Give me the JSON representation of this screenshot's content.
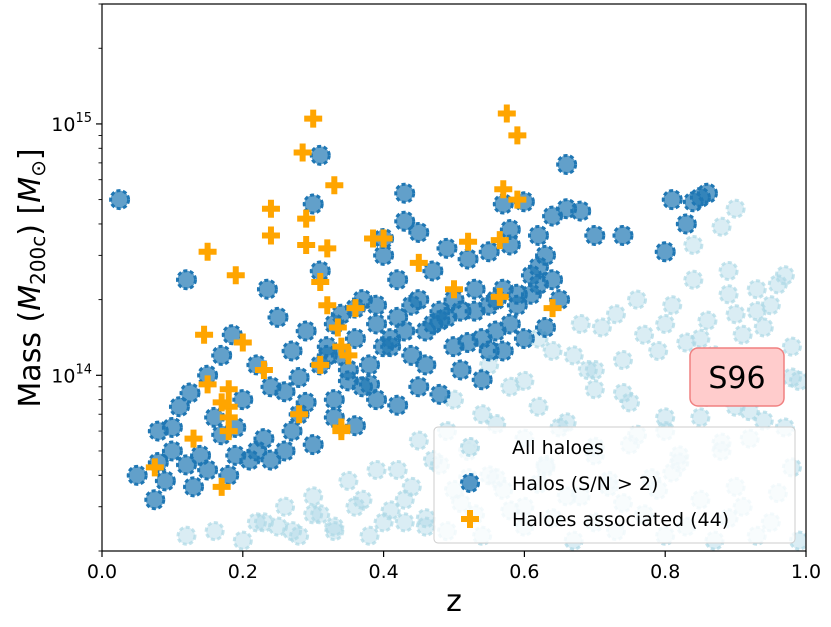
{
  "chart_data": {
    "type": "scatter",
    "xlabel": "z",
    "ylabel": "Mass (M200c) [M⊙]",
    "ylabel_parts": {
      "pre": "Mass (",
      "sym": "M",
      "sub": "200c",
      "mid": ") [",
      "sym2": "M",
      "sub2": "⊙",
      "post": "]"
    },
    "xlim": [
      0.0,
      1.0
    ],
    "ylim": [
      20000000000000.0,
      3000000000000000.0
    ],
    "yscale": "log",
    "x_ticks": [
      {
        "value": 0.0,
        "label": "0.0"
      },
      {
        "value": 0.2,
        "label": "0.2"
      },
      {
        "value": 0.4,
        "label": "0.4"
      },
      {
        "value": 0.6,
        "label": "0.6"
      },
      {
        "value": 0.8,
        "label": "0.8"
      },
      {
        "value": 1.0,
        "label": "1.0"
      }
    ],
    "y_ticks": [
      {
        "value": 100000000000000.0,
        "base": "10",
        "exp": "14"
      },
      {
        "value": 1000000000000000.0,
        "base": "10",
        "exp": "15"
      }
    ],
    "annotation": {
      "text": "S96",
      "x": 0.9,
      "y": 100000000000000.0,
      "facecolor": "#ffcccc",
      "edgecolor": "#f08080"
    },
    "legend": {
      "placement": "lower-right"
    },
    "colors": {
      "all": "#add8e6",
      "detected": "#1f77b4",
      "associated": "#ffa500"
    },
    "series": [
      {
        "name": "All haloes",
        "marker": "circle",
        "color": "#add8e6",
        "x": [
          0.12,
          0.16,
          0.2,
          0.22,
          0.25,
          0.28,
          0.3,
          0.33,
          0.36,
          0.4,
          0.43,
          0.46,
          0.5,
          0.53,
          0.56,
          0.6,
          0.63,
          0.66,
          0.7,
          0.72,
          0.75,
          0.78,
          0.8,
          0.82,
          0.85,
          0.88,
          0.9,
          0.92,
          0.95,
          0.97,
          0.99,
          0.7,
          0.74,
          0.79,
          0.83,
          0.87,
          0.91,
          0.94,
          0.98,
          0.68,
          0.73,
          0.77,
          0.81,
          0.86,
          0.89,
          0.93,
          0.96,
          0.62,
          0.67,
          0.71,
          0.76,
          0.84,
          0.89,
          0.93,
          0.97,
          0.55,
          0.6,
          0.64,
          0.69,
          0.74,
          0.8,
          0.85,
          0.9,
          0.95,
          0.5,
          0.54,
          0.58,
          0.62,
          0.66,
          0.7,
          0.75,
          0.8,
          0.86,
          0.92,
          0.98,
          0.45,
          0.49,
          0.52,
          0.56,
          0.6,
          0.65,
          0.7,
          0.76,
          0.82,
          0.88,
          0.94,
          0.42,
          0.47,
          0.55,
          0.63,
          0.72,
          0.81,
          0.9,
          0.98,
          0.3,
          0.35,
          0.39,
          0.44,
          0.48,
          0.52,
          0.57,
          0.62,
          0.68,
          0.74,
          0.79,
          0.85,
          0.91,
          0.96,
          0.26,
          0.31,
          0.37,
          0.41,
          0.46,
          0.51,
          0.58,
          0.64,
          0.7,
          0.77,
          0.83,
          0.89,
          0.95,
          0.23,
          0.27,
          0.33,
          0.38,
          0.43,
          0.49,
          0.54,
          0.6,
          0.67,
          0.73,
          0.8,
          0.87,
          0.93,
          0.99,
          0.9,
          0.88,
          0.84
        ],
        "y": [
          23000000000000.0,
          24000000000000.0,
          22000000000000.0,
          26000000000000.0,
          25000000000000.0,
          23000000000000.0,
          28000000000000.0,
          24000000000000.0,
          30000000000000.0,
          26000000000000.0,
          32000000000000.0,
          25000000000000.0,
          35000000000000.0,
          28000000000000.0,
          39000000000000.0,
          30000000000000.0,
          43000000000000.0,
          33000000000000.0,
          48000000000000.0,
          36000000000000.0,
          53000000000000.0,
          39000000000000.0,
          60000000000000.0,
          45000000000000.0,
          68000000000000.0,
          50000000000000.0,
          75000000000000.0,
          56000000000000.0,
          85000000000000.0,
          62000000000000.0,
          95000000000000.0,
          105000000000000.0,
          115000000000000.0,
          125000000000000.0,
          135000000000000.0,
          120000000000000.0,
          145000000000000.0,
          155000000000000.0,
          130000000000000.0,
          160000000000000.0,
          175000000000000.0,
          145000000000000.0,
          190000000000000.0,
          165000000000000.0,
          210000000000000.0,
          180000000000000.0,
          230000000000000.0,
          140000000000000.0,
          120000000000000.0,
          155000000000000.0,
          200000000000000.0,
          240000000000000.0,
          260000000000000.0,
          220000000000000.0,
          250000000000000.0,
          110000000000000.0,
          95000000000000.0,
          125000000000000.0,
          105000000000000.0,
          85000000000000.0,
          160000000000000.0,
          140000000000000.0,
          175000000000000.0,
          190000000000000.0,
          80000000000000.0,
          70000000000000.0,
          90000000000000.0,
          75000000000000.0,
          65000000000000.0,
          88000000000000.0,
          78000000000000.0,
          68000000000000.0,
          82000000000000.0,
          72000000000000.0,
          98000000000000.0,
          55000000000000.0,
          60000000000000.0,
          50000000000000.0,
          64000000000000.0,
          56000000000000.0,
          62000000000000.0,
          52000000000000.0,
          58000000000000.0,
          48000000000000.0,
          54000000000000.0,
          66000000000000.0,
          42000000000000.0,
          46000000000000.0,
          40000000000000.0,
          44000000000000.0,
          38000000000000.0,
          41000000000000.0,
          36000000000000.0,
          43000000000000.0,
          33000000000000.0,
          38000000000000.0,
          42000000000000.0,
          36000000000000.0,
          44000000000000.0,
          39000000000000.0,
          35000000000000.0,
          37000000000000.0,
          33000000000000.0,
          31000000000000.0,
          35000000000000.0,
          32000000000000.0,
          30000000000000.0,
          34000000000000.0,
          30000000000000.0,
          28000000000000.0,
          32000000000000.0,
          29000000000000.0,
          27000000000000.0,
          31000000000000.0,
          29000000000000.0,
          27000000000000.0,
          26000000000000.0,
          28000000000000.0,
          25000000000000.0,
          27000000000000.0,
          26000000000000.0,
          26000000000000.0,
          24000000000000.0,
          25000000000000.0,
          23000000000000.0,
          26000000000000.0,
          24000000000000.0,
          23000000000000.0,
          25000000000000.0,
          22000000000000.0,
          24000000000000.0,
          23000000000000.0,
          22000000000000.0,
          23000000000000.0,
          22000000000000.0,
          460000000000000.0,
          390000000000000.0,
          330000000000000.0
        ]
      },
      {
        "name": "Halos (S/N > 2)",
        "marker": "circle",
        "color": "#1f77b4",
        "x": [
          0.025,
          0.05,
          0.075,
          0.08,
          0.09,
          0.1,
          0.11,
          0.12,
          0.125,
          0.13,
          0.14,
          0.15,
          0.16,
          0.17,
          0.18,
          0.185,
          0.19,
          0.2,
          0.21,
          0.22,
          0.23,
          0.235,
          0.24,
          0.25,
          0.26,
          0.27,
          0.28,
          0.29,
          0.3,
          0.31,
          0.32,
          0.33,
          0.34,
          0.35,
          0.36,
          0.37,
          0.38,
          0.39,
          0.4,
          0.41,
          0.42,
          0.43,
          0.44,
          0.45,
          0.46,
          0.47,
          0.48,
          0.49,
          0.5,
          0.51,
          0.52,
          0.53,
          0.54,
          0.55,
          0.56,
          0.57,
          0.58,
          0.59,
          0.6,
          0.61,
          0.62,
          0.63,
          0.64,
          0.65,
          0.66,
          0.68,
          0.7,
          0.74,
          0.8,
          0.81,
          0.83,
          0.84,
          0.85,
          0.86,
          0.08,
          0.1,
          0.12,
          0.15,
          0.17,
          0.19,
          0.22,
          0.24,
          0.27,
          0.3,
          0.33,
          0.36,
          0.39,
          0.42,
          0.45,
          0.48,
          0.51,
          0.54,
          0.57,
          0.6,
          0.63,
          0.28,
          0.31,
          0.34,
          0.37,
          0.4,
          0.43,
          0.46,
          0.49,
          0.52,
          0.55,
          0.58,
          0.61,
          0.26,
          0.29,
          0.32,
          0.35,
          0.38,
          0.41,
          0.44,
          0.47,
          0.5,
          0.53,
          0.56,
          0.59,
          0.62,
          0.33,
          0.36,
          0.39,
          0.42,
          0.45,
          0.48,
          0.55,
          0.57,
          0.58,
          0.62,
          0.64,
          0.66,
          0.43,
          0.4,
          0.31
        ],
        "y": [
          500000000000000.0,
          40000000000000.0,
          32000000000000.0,
          60000000000000.0,
          38000000000000.0,
          50000000000000.0,
          75000000000000.0,
          240000000000000.0,
          85000000000000.0,
          36000000000000.0,
          48000000000000.0,
          100000000000000.0,
          68000000000000.0,
          120000000000000.0,
          40000000000000.0,
          145000000000000.0,
          62000000000000.0,
          80000000000000.0,
          46000000000000.0,
          110000000000000.0,
          56000000000000.0,
          220000000000000.0,
          90000000000000.0,
          170000000000000.0,
          50000000000000.0,
          125000000000000.0,
          70000000000000.0,
          150000000000000.0,
          480000000000000.0,
          260000000000000.0,
          130000000000000.0,
          80000000000000.0,
          175000000000000.0,
          95000000000000.0,
          140000000000000.0,
          200000000000000.0,
          110000000000000.0,
          160000000000000.0,
          350000000000000.0,
          130000000000000.0,
          240000000000000.0,
          530000000000000.0,
          190000000000000.0,
          370000000000000.0,
          150000000000000.0,
          260000000000000.0,
          165000000000000.0,
          320000000000000.0,
          200000000000000.0,
          180000000000000.0,
          290000000000000.0,
          220000000000000.0,
          140000000000000.0,
          310000000000000.0,
          200000000000000.0,
          480000000000000.0,
          380000000000000.0,
          210000000000000.0,
          490000000000000.0,
          250000000000000.0,
          360000000000000.0,
          300000000000000.0,
          430000000000000.0,
          200000000000000.0,
          690000000000000.0,
          450000000000000.0,
          360000000000000.0,
          360000000000000.0,
          310000000000000.0,
          500000000000000.0,
          400000000000000.0,
          490000000000000.0,
          510000000000000.0,
          530000000000000.0,
          45000000000000.0,
          62000000000000.0,
          44000000000000.0,
          42000000000000.0,
          58000000000000.0,
          48000000000000.0,
          50000000000000.0,
          46000000000000.0,
          60000000000000.0,
          53000000000000.0,
          68000000000000.0,
          63000000000000.0,
          80000000000000.0,
          76000000000000.0,
          90000000000000.0,
          84000000000000.0,
          105000000000000.0,
          96000000000000.0,
          125000000000000.0,
          140000000000000.0,
          155000000000000.0,
          98000000000000.0,
          110000000000000.0,
          120000000000000.0,
          90000000000000.0,
          130000000000000.0,
          150000000000000.0,
          110000000000000.0,
          170000000000000.0,
          135000000000000.0,
          190000000000000.0,
          160000000000000.0,
          210000000000000.0,
          86000000000000.0,
          78000000000000.0,
          120000000000000.0,
          105000000000000.0,
          92000000000000.0,
          140000000000000.0,
          120000000000000.0,
          160000000000000.0,
          130000000000000.0,
          180000000000000.0,
          150000000000000.0,
          190000000000000.0,
          230000000000000.0,
          160000000000000.0,
          185000000000000.0,
          190000000000000.0,
          170000000000000.0,
          200000000000000.0,
          180000000000000.0,
          125000000000000.0,
          220000000000000.0,
          330000000000000.0,
          270000000000000.0,
          240000000000000.0,
          460000000000000.0,
          410000000000000.0,
          300000000000000.0,
          750000000000000.0
        ]
      },
      {
        "name": "Haloes associated (44)",
        "marker": "plus",
        "color": "#ffa500",
        "x": [
          0.075,
          0.13,
          0.145,
          0.15,
          0.15,
          0.17,
          0.18,
          0.18,
          0.18,
          0.19,
          0.2,
          0.23,
          0.24,
          0.24,
          0.28,
          0.285,
          0.29,
          0.29,
          0.3,
          0.31,
          0.31,
          0.32,
          0.33,
          0.335,
          0.34,
          0.34,
          0.34,
          0.35,
          0.36,
          0.385,
          0.4,
          0.45,
          0.5,
          0.52,
          0.565,
          0.57,
          0.575,
          0.59,
          0.59,
          0.64,
          0.17,
          0.18,
          0.32,
          0.565
        ],
        "y": [
          43000000000000.0,
          56000000000000.0,
          145000000000000.0,
          310000000000000.0,
          92000000000000.0,
          36000000000000.0,
          88000000000000.0,
          60000000000000.0,
          75000000000000.0,
          250000000000000.0,
          135000000000000.0,
          105000000000000.0,
          460000000000000.0,
          360000000000000.0,
          70000000000000.0,
          770000000000000.0,
          330000000000000.0,
          420000000000000.0,
          1050000000000000.0,
          235000000000000.0,
          110000000000000.0,
          320000000000000.0,
          570000000000000.0,
          155000000000000.0,
          130000000000000.0,
          62000000000000.0,
          60000000000000.0,
          120000000000000.0,
          185000000000000.0,
          350000000000000.0,
          350000000000000.0,
          280000000000000.0,
          220000000000000.0,
          340000000000000.0,
          205000000000000.0,
          550000000000000.0,
          1100000000000000.0,
          500000000000000.0,
          900000000000000.0,
          185000000000000.0,
          78000000000000.0,
          68000000000000.0,
          190000000000000.0,
          345000000000000.0
        ]
      }
    ]
  }
}
